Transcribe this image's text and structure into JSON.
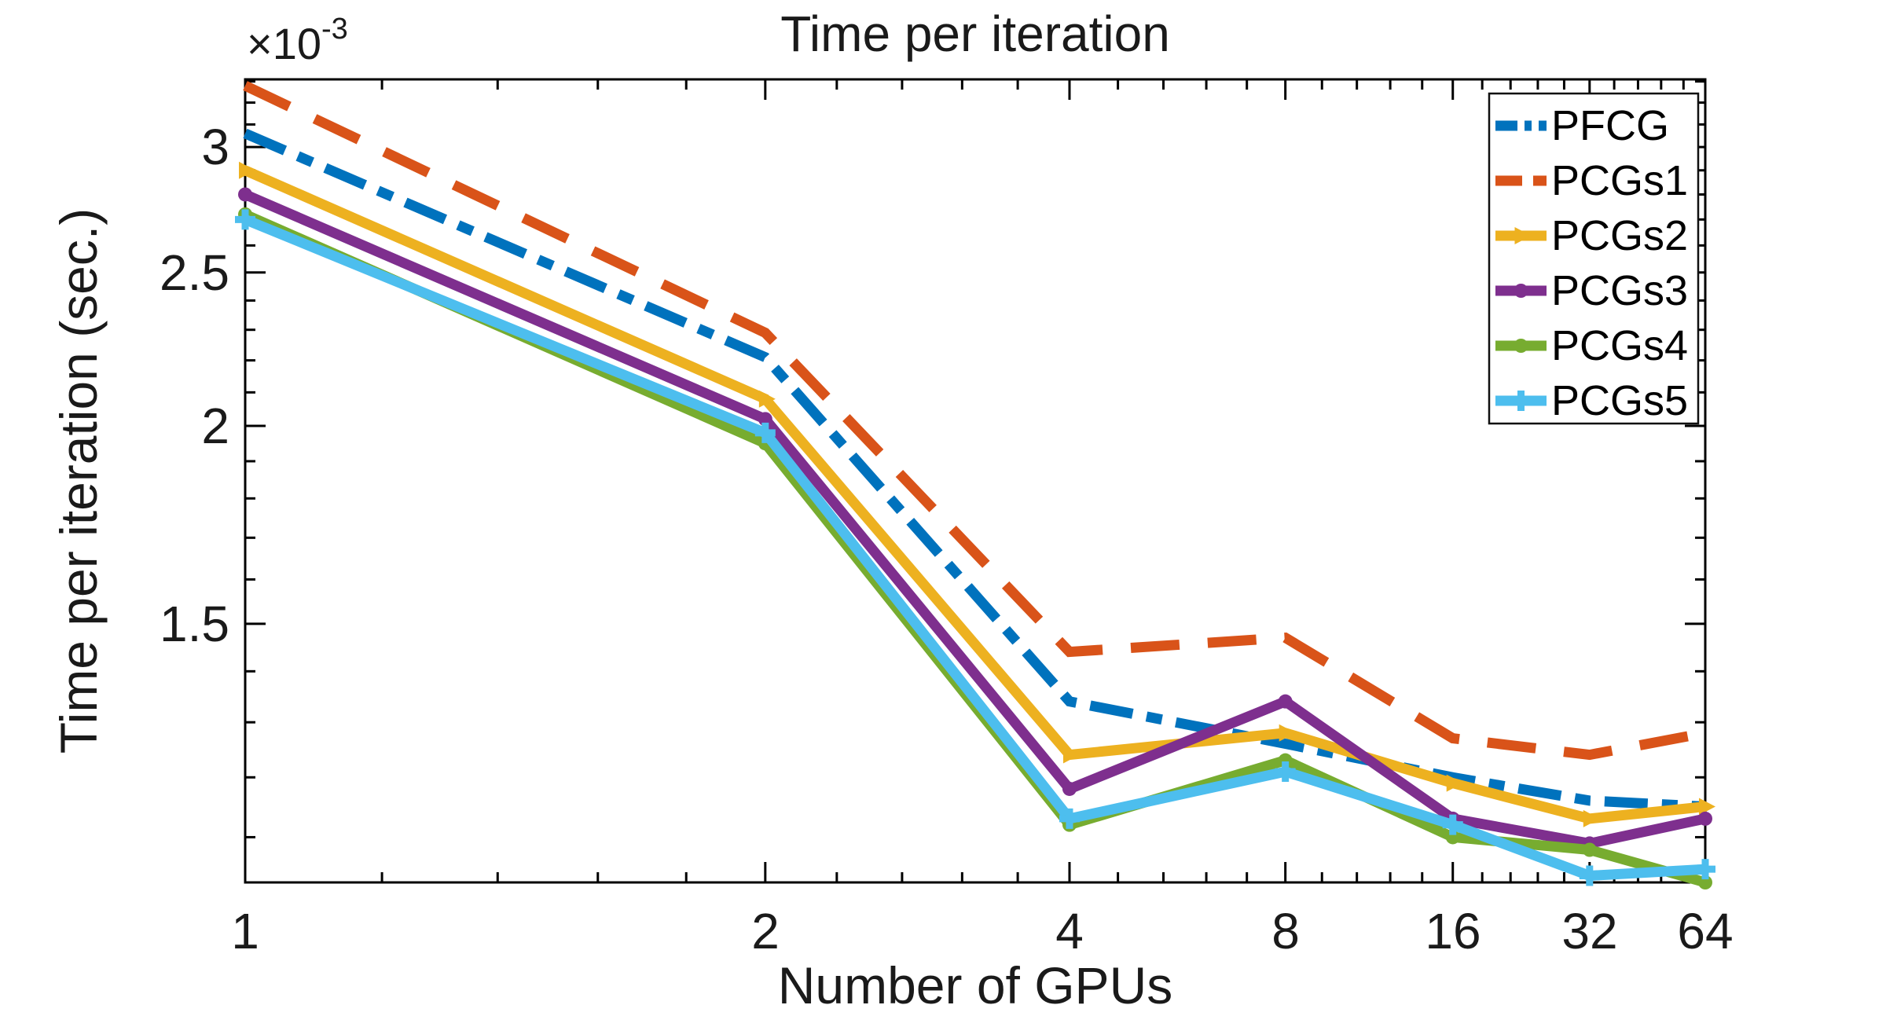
{
  "chart_data": {
    "type": "line",
    "title": "Time per iteration",
    "xlabel": "Number of GPUs",
    "ylabel": "Time per iteration (sec.)",
    "y_exponent_base": "×10",
    "y_exponent_power": "-3",
    "x": [
      1,
      2,
      4,
      8,
      16,
      32,
      64
    ],
    "x_tick_labels": [
      "1",
      "2",
      "4",
      "8",
      "16",
      "32",
      "64"
    ],
    "x_scale": "log(log2(x)+1)",
    "y_scale": "log",
    "ylim_e3": [
      1.03,
      3.31
    ],
    "y_ticks_e3": [
      3,
      2.5,
      2,
      1.5
    ],
    "y_tick_labels": [
      "3",
      "2.5",
      "2",
      "1.5"
    ],
    "y_minor_step_e3": 0.1,
    "grid": "off",
    "legend_position": "top-right",
    "series": [
      {
        "name": "PFCG",
        "color": "#0072BD",
        "style": "dash-dot",
        "marker": "none",
        "values_e3": [
          3.06,
          2.21,
          1.34,
          1.26,
          1.2,
          1.16,
          1.15
        ]
      },
      {
        "name": "PCGs1",
        "color": "#D95319",
        "style": "dashed",
        "marker": "none",
        "values_e3": [
          3.28,
          2.29,
          1.44,
          1.47,
          1.27,
          1.24,
          1.28
        ]
      },
      {
        "name": "PCGs2",
        "color": "#EDB120",
        "style": "solid",
        "marker": "triangle",
        "values_e3": [
          2.9,
          2.08,
          1.24,
          1.28,
          1.19,
          1.13,
          1.15
        ]
      },
      {
        "name": "PCGs3",
        "color": "#7E2F8E",
        "style": "solid",
        "marker": "circle",
        "values_e3": [
          2.8,
          2.02,
          1.18,
          1.34,
          1.13,
          1.09,
          1.13
        ]
      },
      {
        "name": "PCGs4",
        "color": "#77AC30",
        "style": "solid",
        "marker": "circle",
        "values_e3": [
          2.72,
          1.95,
          1.12,
          1.23,
          1.1,
          1.08,
          1.03
        ]
      },
      {
        "name": "PCGs5",
        "color": "#4DBEEE",
        "style": "solid",
        "marker": "plus",
        "values_e3": [
          2.7,
          1.98,
          1.13,
          1.21,
          1.12,
          1.04,
          1.05
        ]
      }
    ]
  }
}
